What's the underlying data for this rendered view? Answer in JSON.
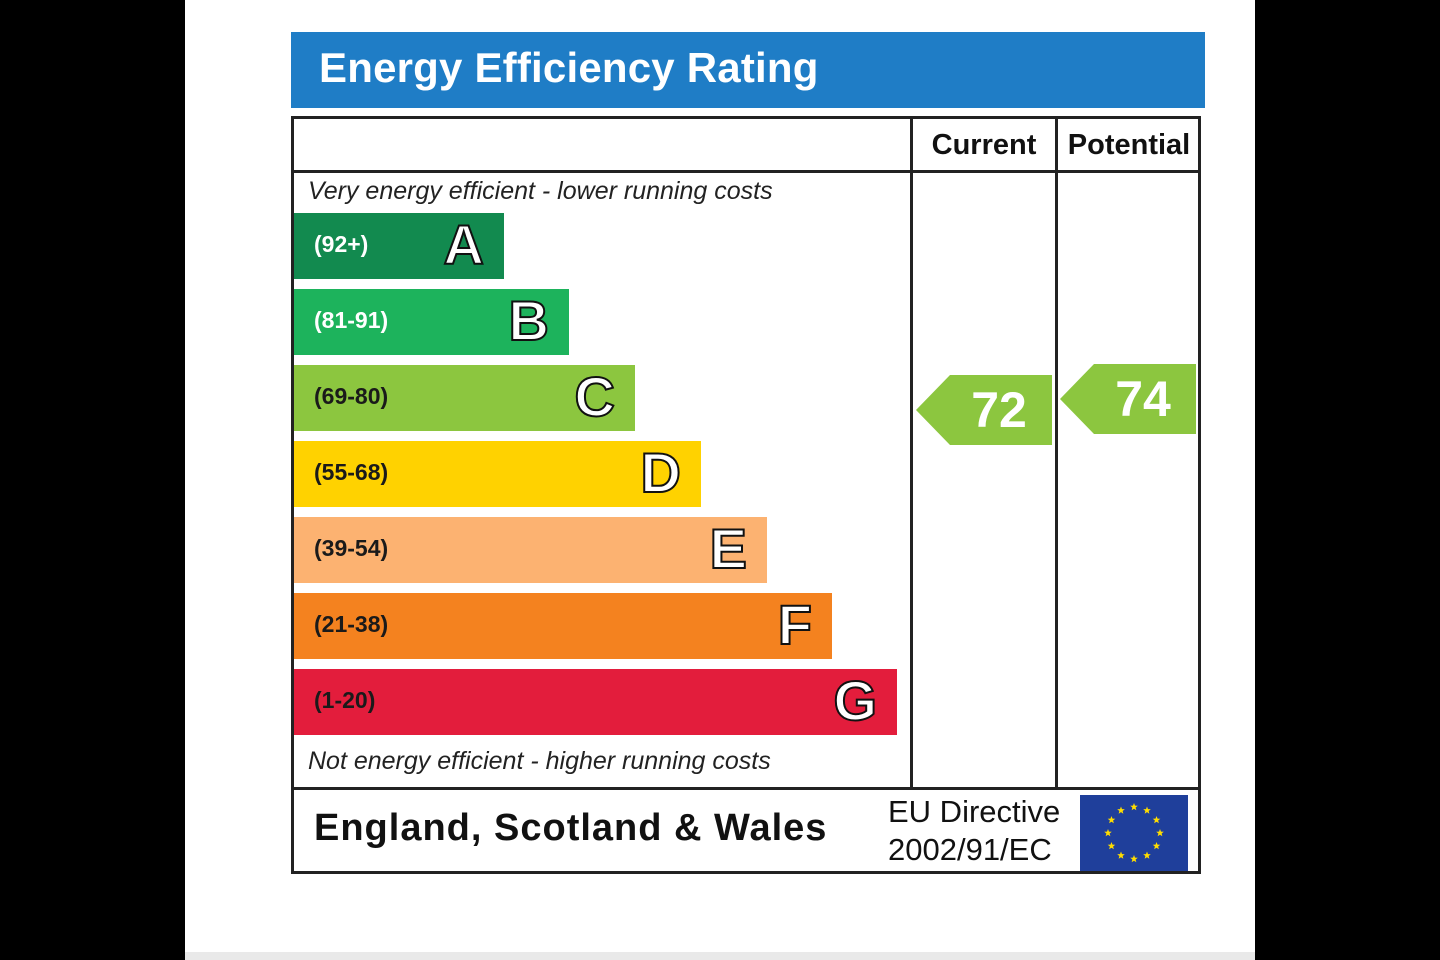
{
  "header": {
    "title": "Energy Efficiency Rating"
  },
  "columns": {
    "current": "Current",
    "potential": "Potential"
  },
  "captions": {
    "top": "Very energy efficient - lower running costs",
    "bottom": "Not energy efficient - higher running costs"
  },
  "bands": [
    {
      "letter": "A",
      "range": "(92+)",
      "color": "#128a4f",
      "range_color": "#ffffff"
    },
    {
      "letter": "B",
      "range": "(81-91)",
      "color": "#1db35c",
      "range_color": "#ffffff"
    },
    {
      "letter": "C",
      "range": "(69-80)",
      "color": "#8cc63f",
      "range_color": "#1a1a1a"
    },
    {
      "letter": "D",
      "range": "(55-68)",
      "color": "#ffd200",
      "range_color": "#1a1a1a"
    },
    {
      "letter": "E",
      "range": "(39-54)",
      "color": "#fcb271",
      "range_color": "#1a1a1a"
    },
    {
      "letter": "F",
      "range": "(21-38)",
      "color": "#f4821f",
      "range_color": "#1a1a1a"
    },
    {
      "letter": "G",
      "range": "(1-20)",
      "color": "#e31d3c",
      "range_color": "#1a1a1a"
    }
  ],
  "ratings": {
    "current": {
      "value": "72",
      "color": "#8cc63f"
    },
    "potential": {
      "value": "74",
      "color": "#8cc63f"
    }
  },
  "footer": {
    "region": "England, Scotland & Wales",
    "directive_line1": "EU Directive",
    "directive_line2": "2002/91/EC"
  }
}
